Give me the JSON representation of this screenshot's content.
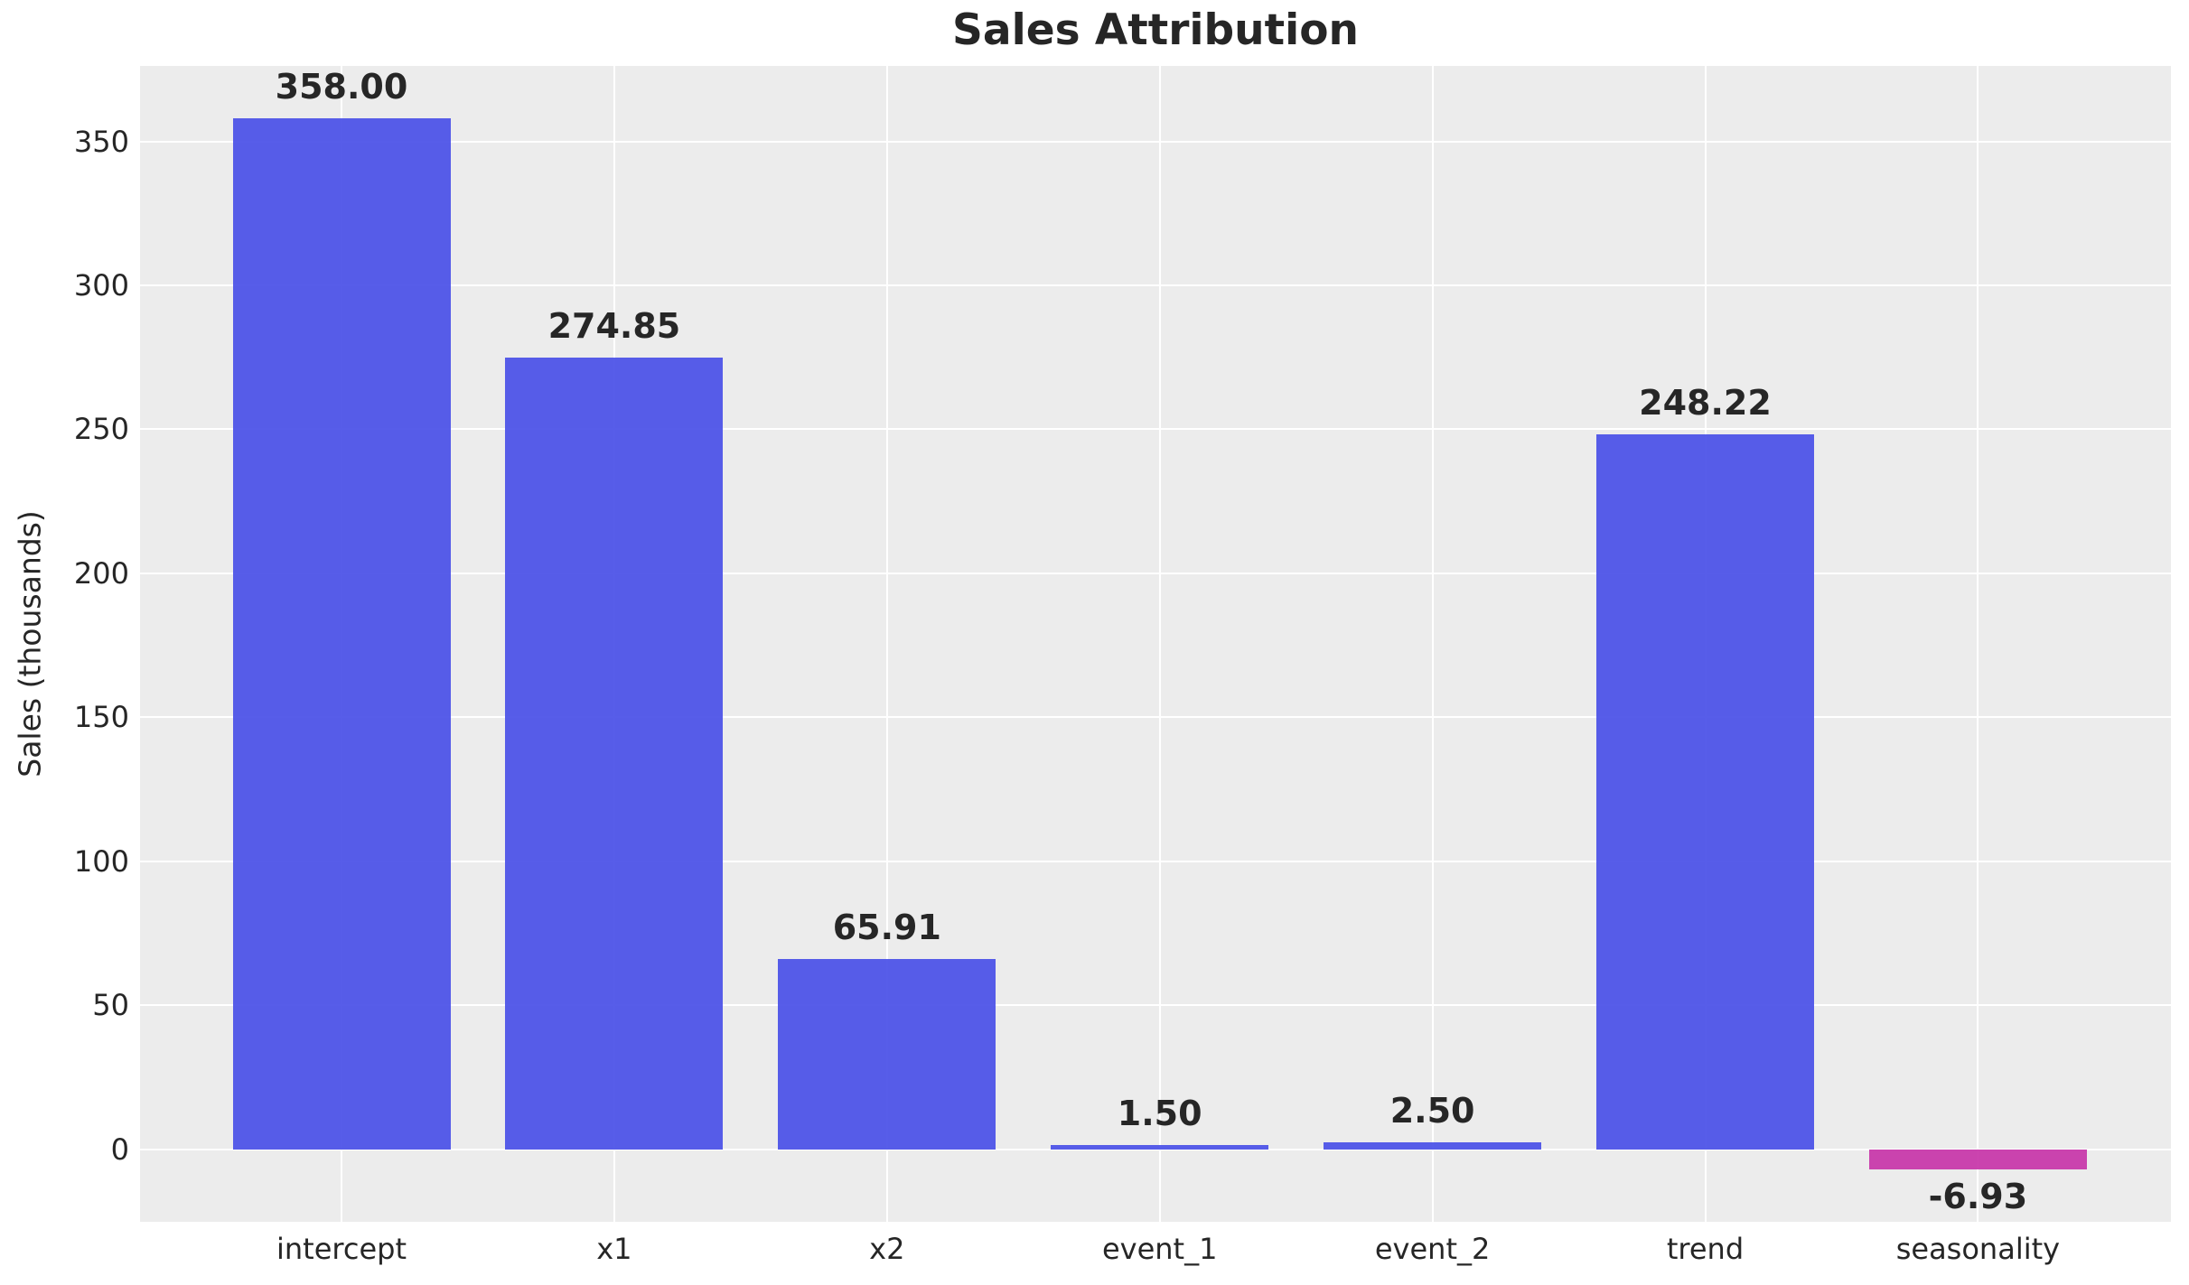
{
  "chart_data": {
    "type": "bar",
    "title": "Sales Attribution",
    "xlabel": "",
    "ylabel": "Sales (thousands)",
    "categories": [
      "intercept",
      "x1",
      "x2",
      "event_1",
      "event_2",
      "trend",
      "seasonality"
    ],
    "values": [
      358.0,
      274.85,
      65.91,
      1.5,
      2.5,
      248.22,
      -6.93
    ],
    "value_labels": [
      "358.00",
      "274.85",
      "65.91",
      "1.50",
      "2.50",
      "248.22",
      "-6.93"
    ],
    "bar_colors": [
      "#4e54e8",
      "#4e54e8",
      "#4e54e8",
      "#4e54e8",
      "#4e54e8",
      "#4e54e8",
      "#c83aab"
    ],
    "yticks": [
      0,
      50,
      100,
      150,
      200,
      250,
      300,
      350
    ],
    "ylim": [
      -25.2,
      376.2
    ],
    "grid": true,
    "legend_position": "none",
    "plot_background": "#ececec",
    "grid_color": "#ffffff",
    "text_color": "#262626"
  }
}
